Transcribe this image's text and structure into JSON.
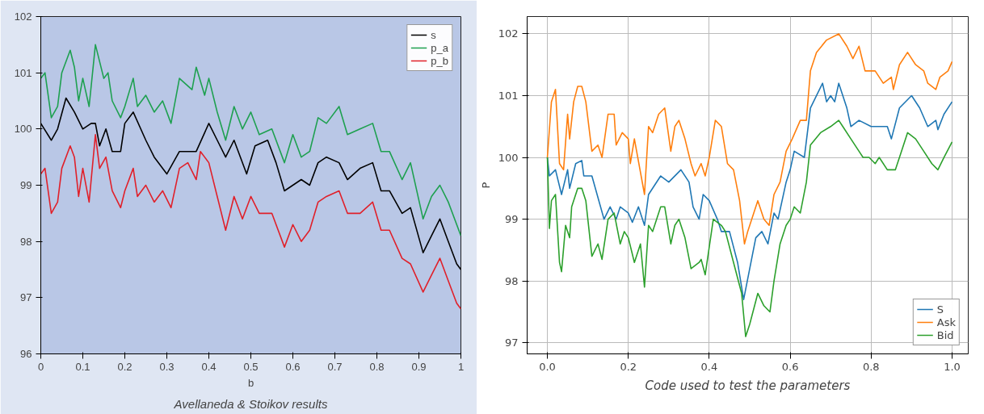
{
  "chart_data": [
    {
      "type": "line",
      "xlabel": "b",
      "xlim": [
        0,
        1
      ],
      "ylim": [
        96,
        102
      ],
      "xticks": [
        0,
        0.1,
        0.2,
        0.3,
        0.4,
        0.5,
        0.6,
        0.7,
        0.8,
        0.9,
        1
      ],
      "yticks": [
        96,
        97,
        98,
        99,
        100,
        101,
        102
      ],
      "grid": false,
      "legend": "top right",
      "annotations": [
        "Avellaneda & Stoikov results"
      ],
      "series": [
        {
          "name": "s",
          "color": "#000000",
          "x": [
            0,
            0.025,
            0.04,
            0.06,
            0.08,
            0.1,
            0.12,
            0.13,
            0.14,
            0.155,
            0.17,
            0.19,
            0.2,
            0.22,
            0.25,
            0.27,
            0.3,
            0.33,
            0.35,
            0.37,
            0.4,
            0.42,
            0.44,
            0.46,
            0.49,
            0.51,
            0.54,
            0.56,
            0.58,
            0.6,
            0.62,
            0.64,
            0.66,
            0.68,
            0.71,
            0.73,
            0.76,
            0.79,
            0.81,
            0.83,
            0.86,
            0.88,
            0.91,
            0.93,
            0.95,
            0.97,
            0.99,
            1.0
          ],
          "values": [
            100.1,
            99.8,
            100.0,
            100.55,
            100.3,
            100.0,
            100.1,
            100.1,
            99.7,
            100.0,
            99.6,
            99.6,
            100.1,
            100.3,
            99.8,
            99.5,
            99.2,
            99.6,
            99.6,
            99.6,
            100.1,
            99.8,
            99.5,
            99.8,
            99.2,
            99.7,
            99.8,
            99.4,
            98.9,
            99.0,
            99.1,
            99.0,
            99.4,
            99.5,
            99.4,
            99.1,
            99.3,
            99.4,
            98.9,
            98.9,
            98.5,
            98.6,
            97.8,
            98.1,
            98.4,
            98.0,
            97.6,
            97.5
          ]
        },
        {
          "name": "p_a",
          "color": "#1ea050",
          "x": [
            0,
            0.01,
            0.025,
            0.04,
            0.05,
            0.07,
            0.08,
            0.09,
            0.1,
            0.115,
            0.13,
            0.15,
            0.16,
            0.17,
            0.19,
            0.2,
            0.22,
            0.23,
            0.25,
            0.27,
            0.29,
            0.31,
            0.33,
            0.36,
            0.37,
            0.39,
            0.4,
            0.42,
            0.44,
            0.46,
            0.48,
            0.5,
            0.52,
            0.55,
            0.58,
            0.6,
            0.62,
            0.64,
            0.66,
            0.68,
            0.71,
            0.73,
            0.76,
            0.79,
            0.81,
            0.83,
            0.86,
            0.88,
            0.91,
            0.93,
            0.95,
            0.97,
            0.99,
            1.0
          ],
          "values": [
            100.9,
            101.0,
            100.2,
            100.4,
            101.0,
            101.4,
            101.1,
            100.5,
            100.9,
            100.4,
            101.5,
            100.9,
            101.0,
            100.5,
            100.2,
            100.4,
            100.9,
            100.4,
            100.6,
            100.3,
            100.5,
            100.1,
            100.9,
            100.7,
            101.1,
            100.6,
            100.9,
            100.3,
            99.8,
            100.4,
            100.0,
            100.3,
            99.9,
            100.0,
            99.4,
            99.9,
            99.5,
            99.6,
            100.2,
            100.1,
            100.4,
            99.9,
            100.0,
            100.1,
            99.6,
            99.6,
            99.1,
            99.4,
            98.4,
            98.8,
            99.0,
            98.7,
            98.3,
            98.1
          ]
        },
        {
          "name": "p_b",
          "color": "#e0202a",
          "x": [
            0,
            0.01,
            0.025,
            0.04,
            0.05,
            0.07,
            0.08,
            0.09,
            0.1,
            0.115,
            0.13,
            0.14,
            0.155,
            0.17,
            0.19,
            0.2,
            0.22,
            0.23,
            0.25,
            0.27,
            0.29,
            0.31,
            0.33,
            0.35,
            0.37,
            0.38,
            0.4,
            0.42,
            0.44,
            0.46,
            0.48,
            0.5,
            0.52,
            0.55,
            0.58,
            0.6,
            0.62,
            0.64,
            0.66,
            0.68,
            0.71,
            0.73,
            0.76,
            0.79,
            0.81,
            0.83,
            0.86,
            0.88,
            0.91,
            0.93,
            0.95,
            0.97,
            0.99,
            1.0
          ],
          "values": [
            99.2,
            99.3,
            98.5,
            98.7,
            99.3,
            99.7,
            99.5,
            98.8,
            99.3,
            98.7,
            99.9,
            99.3,
            99.5,
            98.9,
            98.6,
            98.9,
            99.3,
            98.8,
            99.0,
            98.7,
            98.9,
            98.6,
            99.3,
            99.4,
            99.1,
            99.6,
            99.4,
            98.8,
            98.2,
            98.8,
            98.4,
            98.8,
            98.5,
            98.5,
            97.9,
            98.3,
            98.0,
            98.2,
            98.7,
            98.8,
            98.9,
            98.5,
            98.5,
            98.7,
            98.2,
            98.2,
            97.7,
            97.6,
            97.1,
            97.4,
            97.7,
            97.3,
            96.9,
            96.8
          ]
        }
      ]
    },
    {
      "type": "line",
      "ylabel": "P",
      "xlim": [
        -0.05,
        1.04
      ],
      "ylim": [
        96.82,
        102.28
      ],
      "xticks": [
        {
          "value": 0,
          "label": "0.0"
        },
        {
          "value": 0.2,
          "label": "0.2"
        },
        {
          "value": 0.4,
          "label": "0.4"
        },
        {
          "value": 0.6,
          "label": "0.6"
        },
        {
          "value": 0.8,
          "label": "0.8"
        },
        {
          "value": 1,
          "label": "1.0"
        }
      ],
      "yticks": [
        97,
        98,
        99,
        100,
        101,
        102
      ],
      "grid": true,
      "legend": "bottom right",
      "annotations": [
        "Code used to test the parameters"
      ],
      "series": [
        {
          "name": "S",
          "color": "#1f77b4",
          "x": [
            0,
            0.005,
            0.02,
            0.035,
            0.05,
            0.055,
            0.07,
            0.085,
            0.09,
            0.11,
            0.14,
            0.155,
            0.17,
            0.18,
            0.2,
            0.21,
            0.225,
            0.24,
            0.25,
            0.28,
            0.3,
            0.33,
            0.35,
            0.36,
            0.375,
            0.385,
            0.4,
            0.42,
            0.43,
            0.45,
            0.47,
            0.485,
            0.5,
            0.515,
            0.53,
            0.545,
            0.56,
            0.57,
            0.59,
            0.6,
            0.61,
            0.635,
            0.65,
            0.68,
            0.69,
            0.7,
            0.71,
            0.72,
            0.74,
            0.75,
            0.77,
            0.8,
            0.84,
            0.85,
            0.87,
            0.9,
            0.92,
            0.94,
            0.96,
            0.965,
            0.98,
            1.0
          ],
          "values": [
            100.0,
            99.7,
            99.8,
            99.4,
            99.8,
            99.5,
            99.9,
            99.95,
            99.7,
            99.7,
            99.0,
            99.2,
            99.0,
            99.2,
            99.1,
            98.95,
            99.2,
            98.9,
            99.4,
            99.7,
            99.6,
            99.8,
            99.6,
            99.2,
            99.0,
            99.4,
            99.3,
            99.0,
            98.8,
            98.8,
            98.3,
            97.7,
            98.2,
            98.7,
            98.8,
            98.6,
            99.1,
            99.0,
            99.6,
            99.8,
            100.1,
            100.0,
            100.8,
            101.2,
            100.9,
            101.0,
            100.9,
            101.2,
            100.8,
            100.5,
            100.6,
            100.5,
            100.5,
            100.3,
            100.8,
            101.0,
            100.8,
            100.5,
            100.6,
            100.45,
            100.7,
            100.9
          ]
        },
        {
          "name": "Ask",
          "color": "#ff7f0e",
          "x": [
            0,
            0.01,
            0.02,
            0.03,
            0.04,
            0.05,
            0.055,
            0.065,
            0.075,
            0.085,
            0.095,
            0.11,
            0.125,
            0.135,
            0.15,
            0.165,
            0.17,
            0.185,
            0.2,
            0.205,
            0.215,
            0.24,
            0.25,
            0.26,
            0.275,
            0.29,
            0.305,
            0.315,
            0.325,
            0.34,
            0.355,
            0.365,
            0.38,
            0.39,
            0.4,
            0.415,
            0.43,
            0.445,
            0.46,
            0.475,
            0.487,
            0.495,
            0.52,
            0.535,
            0.548,
            0.56,
            0.575,
            0.59,
            0.605,
            0.625,
            0.64,
            0.65,
            0.665,
            0.69,
            0.72,
            0.74,
            0.755,
            0.77,
            0.785,
            0.81,
            0.83,
            0.85,
            0.855,
            0.87,
            0.89,
            0.91,
            0.93,
            0.94,
            0.96,
            0.97,
            0.99,
            1.0
          ],
          "values": [
            100.0,
            100.9,
            101.1,
            99.9,
            99.8,
            100.7,
            100.3,
            100.9,
            101.15,
            101.15,
            100.9,
            100.1,
            100.2,
            100.0,
            100.7,
            100.7,
            100.2,
            100.4,
            100.3,
            99.9,
            100.3,
            99.4,
            100.5,
            100.4,
            100.7,
            100.8,
            100.1,
            100.5,
            100.6,
            100.3,
            99.9,
            99.7,
            99.9,
            99.7,
            100.0,
            100.6,
            100.5,
            99.9,
            99.8,
            99.3,
            98.6,
            98.8,
            99.3,
            99.0,
            98.9,
            99.4,
            99.6,
            100.1,
            100.3,
            100.6,
            100.6,
            101.4,
            101.7,
            101.9,
            102.0,
            101.8,
            101.6,
            101.8,
            101.4,
            101.4,
            101.2,
            101.3,
            101.1,
            101.5,
            101.7,
            101.5,
            101.4,
            101.2,
            101.1,
            101.3,
            101.4,
            101.55
          ]
        },
        {
          "name": "Bid",
          "color": "#2ca02c",
          "x": [
            0,
            0.005,
            0.01,
            0.02,
            0.03,
            0.035,
            0.045,
            0.055,
            0.06,
            0.075,
            0.085,
            0.095,
            0.11,
            0.125,
            0.135,
            0.15,
            0.165,
            0.18,
            0.19,
            0.2,
            0.215,
            0.23,
            0.24,
            0.25,
            0.26,
            0.28,
            0.29,
            0.305,
            0.315,
            0.325,
            0.34,
            0.355,
            0.375,
            0.38,
            0.39,
            0.41,
            0.43,
            0.44,
            0.46,
            0.48,
            0.49,
            0.5,
            0.52,
            0.535,
            0.55,
            0.56,
            0.575,
            0.59,
            0.6,
            0.61,
            0.625,
            0.64,
            0.65,
            0.675,
            0.7,
            0.72,
            0.73,
            0.75,
            0.77,
            0.78,
            0.795,
            0.81,
            0.82,
            0.84,
            0.86,
            0.875,
            0.89,
            0.91,
            0.93,
            0.95,
            0.965,
            0.98,
            1.0
          ],
          "values": [
            100.0,
            98.85,
            99.3,
            99.4,
            98.3,
            98.15,
            98.9,
            98.7,
            99.2,
            99.5,
            99.5,
            99.3,
            98.4,
            98.6,
            98.35,
            99.0,
            99.1,
            98.6,
            98.8,
            98.7,
            98.3,
            98.6,
            97.9,
            98.9,
            98.8,
            99.2,
            99.2,
            98.6,
            98.9,
            99.0,
            98.7,
            98.2,
            98.3,
            98.35,
            98.1,
            99.0,
            98.9,
            98.8,
            98.3,
            97.8,
            97.1,
            97.3,
            97.8,
            97.6,
            97.5,
            98.0,
            98.6,
            98.9,
            99.0,
            99.2,
            99.1,
            99.6,
            100.2,
            100.4,
            100.5,
            100.6,
            100.5,
            100.3,
            100.1,
            100.0,
            100.0,
            99.9,
            100.0,
            99.8,
            99.8,
            100.1,
            100.4,
            100.3,
            100.1,
            99.9,
            99.8,
            100.0,
            100.25
          ]
        }
      ]
    }
  ]
}
